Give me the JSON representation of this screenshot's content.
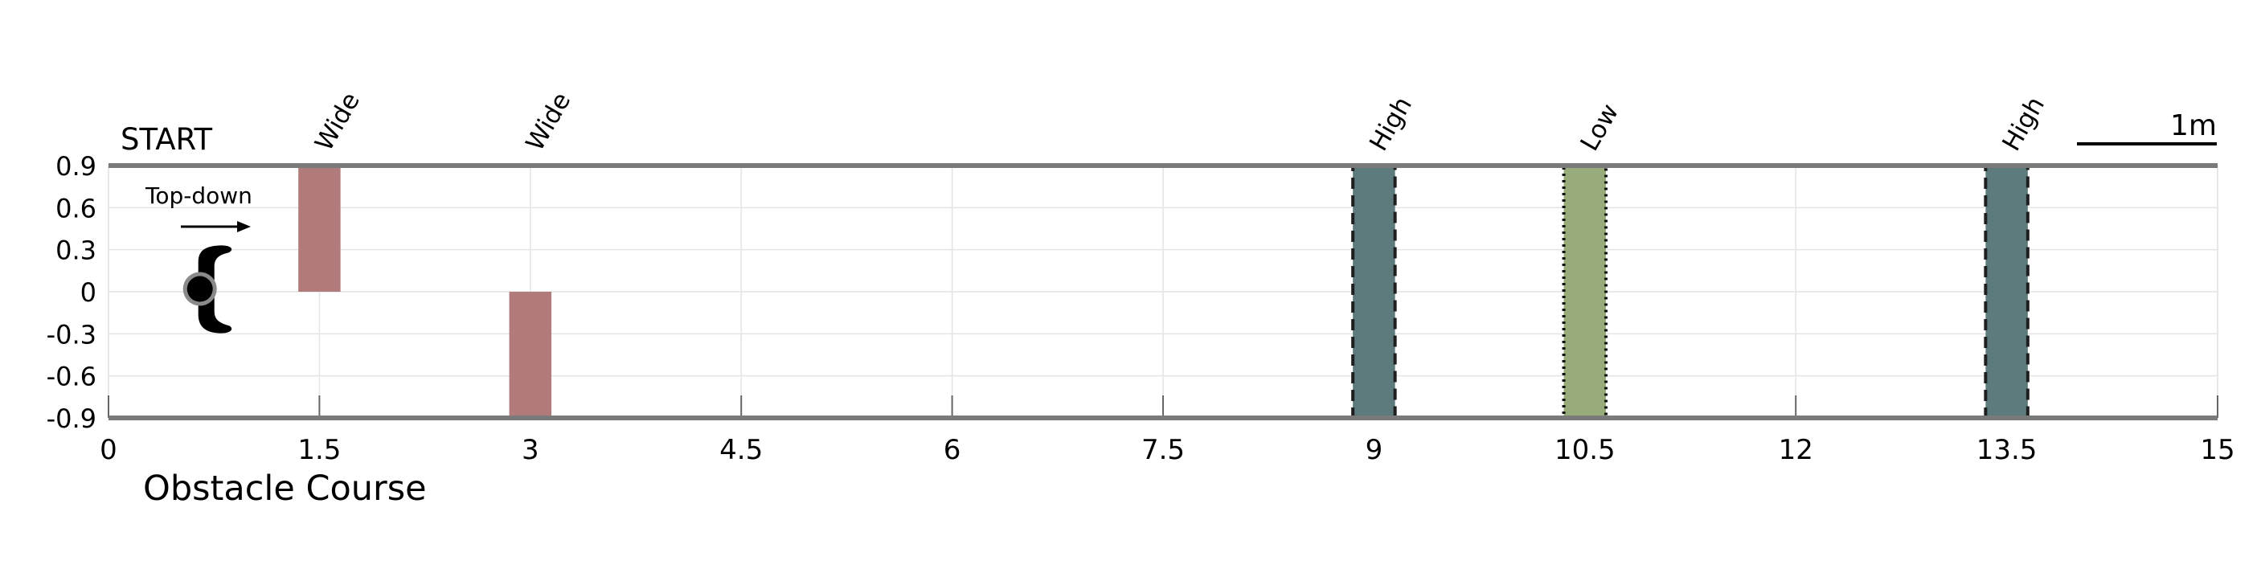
{
  "figure": {
    "caption": "Obstacle Course",
    "start_label": "START",
    "direction_label": "Top-down",
    "scale_bar_label": "1m",
    "scale_bar_length_m": 1
  },
  "colors": {
    "wide": "#b17b7b",
    "high": "#5d7b7d",
    "low": "#98ab7b",
    "rail": "#7a7a7a",
    "grid": "#e4e4e4"
  },
  "chart_data": {
    "type": "diagram",
    "xlim": [
      0,
      15
    ],
    "ylim": [
      -0.9,
      0.9
    ],
    "x_ticks": [
      {
        "value": 0,
        "label": "0"
      },
      {
        "value": 1.5,
        "label": "1.5"
      },
      {
        "value": 3,
        "label": "3"
      },
      {
        "value": 4.5,
        "label": "4.5"
      },
      {
        "value": 6,
        "label": "6"
      },
      {
        "value": 7.5,
        "label": "7.5"
      },
      {
        "value": 9,
        "label": "9"
      },
      {
        "value": 10.5,
        "label": "10.5"
      },
      {
        "value": 12,
        "label": "12"
      },
      {
        "value": 13.5,
        "label": "13.5"
      },
      {
        "value": 15,
        "label": "15"
      }
    ],
    "y_ticks": [
      {
        "value": 0.9,
        "label": "0.9"
      },
      {
        "value": 0.6,
        "label": "0.6"
      },
      {
        "value": 0.3,
        "label": "0.3"
      },
      {
        "value": 0,
        "label": "0"
      },
      {
        "value": -0.3,
        "label": "-0.3"
      },
      {
        "value": -0.6,
        "label": "-0.6"
      },
      {
        "value": -0.9,
        "label": "-0.9"
      }
    ],
    "obstacles": [
      {
        "label": "Wide",
        "kind": "wide",
        "x0": 1.35,
        "x1": 1.65,
        "y0": 0,
        "y1": 0.9,
        "border": "none"
      },
      {
        "label": "Wide",
        "kind": "wide",
        "x0": 2.85,
        "x1": 3.15,
        "y0": -0.9,
        "y1": 0,
        "border": "none"
      },
      {
        "label": "High",
        "kind": "high",
        "x0": 8.85,
        "x1": 9.15,
        "y0": -0.9,
        "y1": 0.9,
        "border": "dashed"
      },
      {
        "label": "Low",
        "kind": "low",
        "x0": 10.35,
        "x1": 10.65,
        "y0": -0.9,
        "y1": 0.9,
        "border": "dotted"
      },
      {
        "label": "High",
        "kind": "high",
        "x0": 13.35,
        "x1": 13.65,
        "y0": -0.9,
        "y1": 0.9,
        "border": "dashed"
      }
    ],
    "robot": {
      "x": 0.65,
      "y": 0.02
    }
  }
}
